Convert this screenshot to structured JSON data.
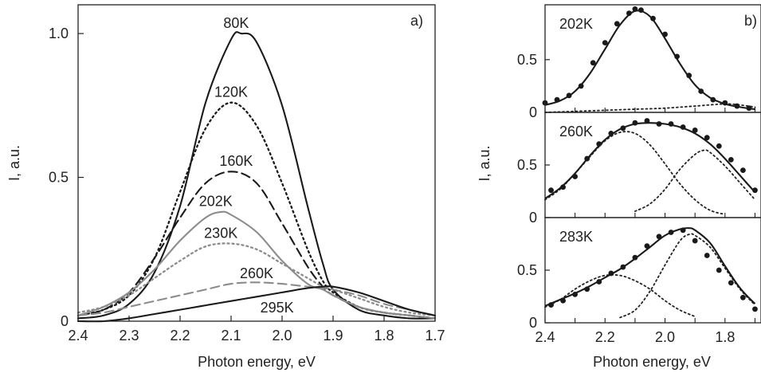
{
  "panels": {
    "a": {
      "tag": "a)"
    },
    "b": {
      "tag": "b)"
    }
  },
  "chart_data": [
    {
      "type": "line",
      "panel": "a",
      "xlabel": "Photon energy, eV",
      "ylabel": "I, a.u.",
      "xlim": [
        2.4,
        1.7
      ],
      "ylim": [
        0,
        1.1
      ],
      "x_ticks": [
        "2.4",
        "2.3",
        "2.2",
        "2.1",
        "2.0",
        "1.9",
        "1.8",
        "1.7"
      ],
      "y_ticks": [
        "0",
        "0.5",
        "1.0"
      ],
      "series": [
        {
          "name": "80K",
          "color": "#1a1a1a",
          "dash": "solid",
          "x": [
            2.4,
            2.35,
            2.3,
            2.25,
            2.2,
            2.15,
            2.1,
            2.08,
            2.05,
            2.0,
            1.95,
            1.92,
            1.9,
            1.85,
            1.8,
            1.75,
            1.7
          ],
          "y": [
            0.01,
            0.02,
            0.06,
            0.17,
            0.4,
            0.76,
            0.98,
            1.0,
            0.97,
            0.75,
            0.4,
            0.2,
            0.11,
            0.04,
            0.02,
            0.01,
            0.01
          ],
          "label_pos": [
            2.09,
            1.02
          ]
        },
        {
          "name": "120K",
          "color": "#1a1a1a",
          "dash": "dot",
          "x": [
            2.4,
            2.35,
            2.3,
            2.25,
            2.2,
            2.15,
            2.1,
            2.05,
            2.0,
            1.95,
            1.92,
            1.9,
            1.85,
            1.8,
            1.75,
            1.7
          ],
          "y": [
            0.02,
            0.04,
            0.09,
            0.22,
            0.45,
            0.67,
            0.76,
            0.68,
            0.48,
            0.25,
            0.14,
            0.1,
            0.05,
            0.03,
            0.02,
            0.01
          ],
          "label_pos": [
            2.1,
            0.78
          ]
        },
        {
          "name": "160K",
          "color": "#1a1a1a",
          "dash": "dash",
          "x": [
            2.4,
            2.35,
            2.3,
            2.25,
            2.2,
            2.15,
            2.1,
            2.05,
            2.0,
            1.95,
            1.92,
            1.9,
            1.85,
            1.8,
            1.75,
            1.7
          ],
          "y": [
            0.02,
            0.04,
            0.1,
            0.22,
            0.36,
            0.48,
            0.52,
            0.48,
            0.34,
            0.19,
            0.12,
            0.09,
            0.05,
            0.03,
            0.02,
            0.01
          ],
          "label_pos": [
            2.09,
            0.54
          ]
        },
        {
          "name": "202K",
          "color": "#8c8c8c",
          "dash": "solid",
          "x": [
            2.4,
            2.35,
            2.3,
            2.25,
            2.2,
            2.15,
            2.12,
            2.1,
            2.05,
            2.0,
            1.95,
            1.92,
            1.9,
            1.85,
            1.8,
            1.75,
            1.7
          ],
          "y": [
            0.02,
            0.05,
            0.1,
            0.18,
            0.28,
            0.36,
            0.38,
            0.37,
            0.31,
            0.21,
            0.13,
            0.11,
            0.09,
            0.05,
            0.03,
            0.02,
            0.01
          ],
          "label_pos": [
            2.13,
            0.4
          ]
        },
        {
          "name": "230K",
          "color": "#8c8c8c",
          "dash": "dot",
          "x": [
            2.4,
            2.35,
            2.3,
            2.25,
            2.2,
            2.15,
            2.1,
            2.05,
            2.0,
            1.95,
            1.92,
            1.9,
            1.85,
            1.8,
            1.75,
            1.7
          ],
          "y": [
            0.03,
            0.05,
            0.09,
            0.15,
            0.21,
            0.26,
            0.27,
            0.25,
            0.2,
            0.15,
            0.12,
            0.11,
            0.08,
            0.05,
            0.03,
            0.02
          ],
          "label_pos": [
            2.12,
            0.29
          ]
        },
        {
          "name": "260K",
          "color": "#8c8c8c",
          "dash": "dash",
          "x": [
            2.4,
            2.35,
            2.3,
            2.25,
            2.2,
            2.15,
            2.1,
            2.05,
            2.0,
            1.95,
            1.92,
            1.9,
            1.85,
            1.8,
            1.75,
            1.7
          ],
          "y": [
            0.02,
            0.03,
            0.05,
            0.07,
            0.09,
            0.11,
            0.13,
            0.135,
            0.13,
            0.12,
            0.115,
            0.11,
            0.09,
            0.06,
            0.04,
            0.02
          ],
          "label_pos": [
            2.05,
            0.15
          ]
        },
        {
          "name": "295K",
          "color": "#1a1a1a",
          "dash": "solid",
          "x": [
            2.4,
            2.35,
            2.3,
            2.25,
            2.2,
            2.15,
            2.1,
            2.05,
            2.0,
            1.95,
            1.92,
            1.9,
            1.85,
            1.8,
            1.75,
            1.7
          ],
          "y": [
            0.0,
            0.0,
            0.01,
            0.025,
            0.04,
            0.055,
            0.07,
            0.085,
            0.1,
            0.115,
            0.12,
            0.12,
            0.1,
            0.07,
            0.04,
            0.02
          ],
          "label_pos": [
            2.01,
            0.03
          ]
        }
      ]
    },
    {
      "type": "scatter",
      "panel": "b1",
      "annotation": "202K",
      "xlim": [
        2.4,
        1.68
      ],
      "ylim": [
        0,
        1.02
      ],
      "y_ticks": [
        "0",
        "0.5"
      ],
      "points": {
        "x": [
          2.4,
          2.36,
          2.32,
          2.28,
          2.24,
          2.2,
          2.16,
          2.12,
          2.1,
          2.08,
          2.04,
          2.0,
          1.96,
          1.92,
          1.88,
          1.84,
          1.8,
          1.76,
          1.72
        ],
        "y": [
          0.09,
          0.12,
          0.16,
          0.25,
          0.47,
          0.66,
          0.84,
          0.94,
          0.98,
          0.97,
          0.89,
          0.74,
          0.53,
          0.35,
          0.2,
          0.12,
          0.09,
          0.06,
          0.04
        ]
      },
      "fit": {
        "x": [
          2.4,
          2.35,
          2.3,
          2.25,
          2.2,
          2.15,
          2.1,
          2.05,
          2.0,
          1.95,
          1.9,
          1.85,
          1.8,
          1.75,
          1.7
        ],
        "y": [
          0.07,
          0.11,
          0.2,
          0.37,
          0.6,
          0.83,
          0.96,
          0.91,
          0.7,
          0.46,
          0.26,
          0.14,
          0.08,
          0.05,
          0.03
        ]
      },
      "components": [
        {
          "x": [
            2.4,
            2.3,
            2.2,
            2.1,
            2.0,
            1.9,
            1.8,
            1.75,
            1.7
          ],
          "y": [
            0.0,
            0.01,
            0.02,
            0.03,
            0.04,
            0.06,
            0.08,
            0.07,
            0.05
          ]
        }
      ]
    },
    {
      "type": "scatter",
      "panel": "b2",
      "annotation": "260K",
      "xlim": [
        2.4,
        1.68
      ],
      "ylim": [
        0,
        1.0
      ],
      "y_ticks": [
        "0",
        "0.5"
      ],
      "points": {
        "x": [
          2.38,
          2.34,
          2.3,
          2.26,
          2.22,
          2.18,
          2.14,
          2.1,
          2.06,
          2.02,
          1.98,
          1.94,
          1.9,
          1.86,
          1.82,
          1.78,
          1.74,
          1.7
        ],
        "y": [
          0.26,
          0.29,
          0.39,
          0.56,
          0.7,
          0.8,
          0.85,
          0.9,
          0.92,
          0.89,
          0.89,
          0.86,
          0.83,
          0.76,
          0.68,
          0.55,
          0.45,
          0.26
        ]
      },
      "fit": {
        "x": [
          2.4,
          2.35,
          2.3,
          2.25,
          2.2,
          2.15,
          2.1,
          2.05,
          2.0,
          1.95,
          1.9,
          1.85,
          1.8,
          1.75,
          1.7
        ],
        "y": [
          0.18,
          0.28,
          0.42,
          0.59,
          0.74,
          0.84,
          0.89,
          0.9,
          0.89,
          0.86,
          0.8,
          0.7,
          0.56,
          0.4,
          0.24
        ]
      },
      "components": [
        {
          "x": [
            2.4,
            2.35,
            2.3,
            2.25,
            2.2,
            2.15,
            2.1,
            2.05,
            2.0,
            1.95,
            1.9,
            1.85,
            1.8
          ],
          "y": [
            0.17,
            0.27,
            0.42,
            0.58,
            0.73,
            0.81,
            0.8,
            0.69,
            0.51,
            0.32,
            0.17,
            0.07,
            0.03
          ]
        },
        {
          "x": [
            2.1,
            2.05,
            2.0,
            1.95,
            1.9,
            1.87,
            1.85,
            1.8,
            1.75,
            1.7
          ],
          "y": [
            0.06,
            0.13,
            0.27,
            0.46,
            0.6,
            0.64,
            0.62,
            0.49,
            0.33,
            0.17
          ]
        }
      ]
    },
    {
      "type": "scatter",
      "panel": "b3",
      "annotation": "283K",
      "xlabel": "Photon energy, eV",
      "xlim": [
        2.4,
        1.68
      ],
      "ylim": [
        0,
        1.0
      ],
      "x_ticks": [
        "2.4",
        "2.2",
        "2.0",
        "1.8"
      ],
      "y_ticks": [
        "0",
        "0.5"
      ],
      "points": {
        "x": [
          2.38,
          2.34,
          2.3,
          2.26,
          2.22,
          2.18,
          2.14,
          2.1,
          2.06,
          2.02,
          1.98,
          1.94,
          1.9,
          1.86,
          1.82,
          1.78,
          1.74,
          1.7
        ],
        "y": [
          0.17,
          0.21,
          0.27,
          0.32,
          0.39,
          0.47,
          0.53,
          0.62,
          0.73,
          0.82,
          0.86,
          0.88,
          0.78,
          0.64,
          0.5,
          0.38,
          0.24,
          0.13
        ]
      },
      "fit": {
        "x": [
          2.4,
          2.35,
          2.3,
          2.25,
          2.2,
          2.15,
          2.1,
          2.05,
          2.0,
          1.95,
          1.92,
          1.9,
          1.85,
          1.8,
          1.75,
          1.7
        ],
        "y": [
          0.16,
          0.22,
          0.28,
          0.35,
          0.43,
          0.51,
          0.61,
          0.72,
          0.83,
          0.89,
          0.9,
          0.88,
          0.76,
          0.54,
          0.33,
          0.18
        ]
      },
      "components": [
        {
          "x": [
            2.4,
            2.35,
            2.3,
            2.25,
            2.2,
            2.15,
            2.1,
            2.05,
            2.0,
            1.95,
            1.9
          ],
          "y": [
            0.15,
            0.22,
            0.32,
            0.4,
            0.45,
            0.45,
            0.4,
            0.32,
            0.21,
            0.12,
            0.06
          ]
        },
        {
          "x": [
            2.15,
            2.1,
            2.05,
            2.0,
            1.95,
            1.92,
            1.9,
            1.85,
            1.8,
            1.75,
            1.7
          ],
          "y": [
            0.05,
            0.12,
            0.3,
            0.55,
            0.78,
            0.84,
            0.83,
            0.72,
            0.52,
            0.32,
            0.17
          ]
        }
      ]
    }
  ]
}
